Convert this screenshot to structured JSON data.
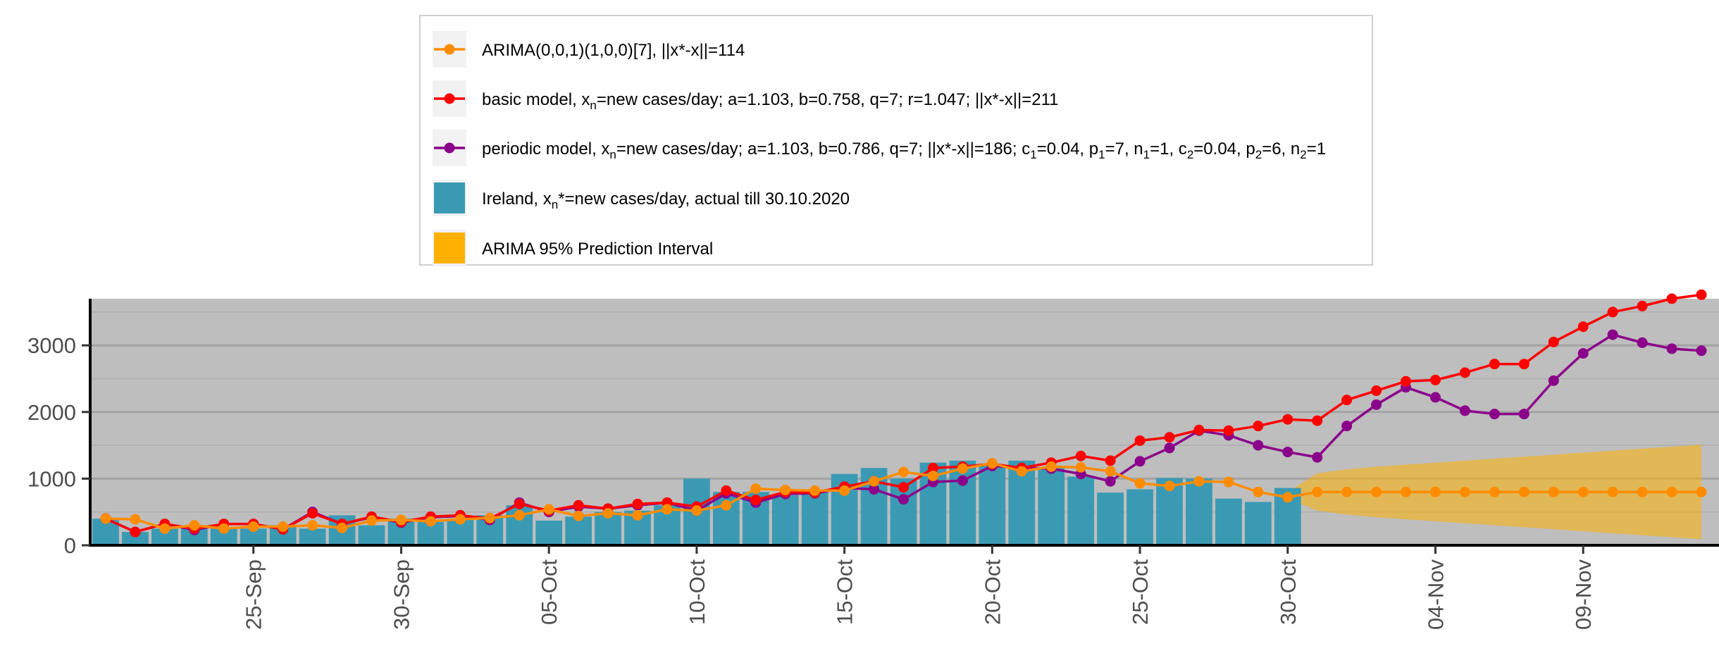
{
  "chart_data": {
    "type": "bar",
    "x_type": "date",
    "xlim": [
      "2020-09-20",
      "2020-11-13"
    ],
    "ylim": [
      0,
      3700
    ],
    "y_ticks": [
      0,
      1000,
      2000,
      3000
    ],
    "y_tick_labels": [
      "0",
      "1000",
      "2000",
      "3000"
    ],
    "x_ticks": [
      "2020-09-25",
      "2020-09-30",
      "2020-10-05",
      "2020-10-10",
      "2020-10-15",
      "2020-10-20",
      "2020-10-25",
      "2020-10-30",
      "2020-11-04",
      "2020-11-09"
    ],
    "x_tick_labels": [
      "25-Sep",
      "30-Sep",
      "05-Oct",
      "10-Oct",
      "15-Oct",
      "20-Oct",
      "25-Oct",
      "30-Oct",
      "04-Nov",
      "09-Nov"
    ],
    "grid": true,
    "legend_position": "top",
    "legend": [
      {
        "key": "arima",
        "name": "ARIMA(0,0,1)(1,0,0)[7], ||x*-x||=114",
        "symbol": "line-point",
        "color": "#FF8C00"
      },
      {
        "key": "basic",
        "name_runs": [
          [
            "basic model,  x",
            ""
          ],
          [
            "n",
            "sub"
          ],
          [
            "=new cases/day; a=1.103, b=0.758, q=7;  r=1.047; ||x*-x||=211",
            ""
          ]
        ],
        "symbol": "line-point",
        "color": "#FF0000"
      },
      {
        "key": "periodic",
        "name_runs": [
          [
            "periodic model, x",
            ""
          ],
          [
            "n",
            "sub"
          ],
          [
            "=new cases/day; a=1.103, b=0.786, q=7; ||x*-x||=186; c",
            ""
          ],
          [
            "1",
            "sub"
          ],
          [
            "=0.04, p",
            ""
          ],
          [
            "1",
            "sub"
          ],
          [
            "=7, n",
            ""
          ],
          [
            "1",
            "sub"
          ],
          [
            "=1, c",
            ""
          ],
          [
            "2",
            "sub"
          ],
          [
            "=0.04, p",
            ""
          ],
          [
            "2",
            "sub"
          ],
          [
            "=6, n",
            ""
          ],
          [
            "2",
            "sub"
          ],
          [
            "=1",
            ""
          ]
        ],
        "symbol": "line-point",
        "color": "#8B008B"
      },
      {
        "key": "actual",
        "name_runs": [
          [
            "Ireland, x",
            ""
          ],
          [
            "n",
            "sub"
          ],
          [
            "*=new cases/day, actual till 30.10.2020",
            ""
          ]
        ],
        "symbol": "box",
        "color": "#3A9AB4"
      },
      {
        "key": "interval",
        "name": "ARIMA 95% Prediction Interval",
        "symbol": "box",
        "color": "#FFB000"
      }
    ],
    "bars": {
      "name": "Ireland, new cases/day, actual till 30.10.2020",
      "color": "#3A9AB4",
      "x": [
        "2020-09-20",
        "2020-09-21",
        "2020-09-22",
        "2020-09-23",
        "2020-09-24",
        "2020-09-25",
        "2020-09-26",
        "2020-09-27",
        "2020-09-28",
        "2020-09-29",
        "2020-09-30",
        "2020-10-01",
        "2020-10-02",
        "2020-10-03",
        "2020-10-04",
        "2020-10-05",
        "2020-10-06",
        "2020-10-07",
        "2020-10-08",
        "2020-10-09",
        "2020-10-10",
        "2020-10-11",
        "2020-10-12",
        "2020-10-13",
        "2020-10-14",
        "2020-10-15",
        "2020-10-16",
        "2020-10-17",
        "2020-10-18",
        "2020-10-19",
        "2020-10-20",
        "2020-10-21",
        "2020-10-22",
        "2020-10-23",
        "2020-10-24",
        "2020-10-25",
        "2020-10-26",
        "2020-10-27",
        "2020-10-28",
        "2020-10-29",
        "2020-10-30"
      ],
      "values": [
        400,
        200,
        250,
        250,
        250,
        250,
        300,
        250,
        450,
        300,
        400,
        350,
        400,
        450,
        600,
        370,
        430,
        500,
        520,
        600,
        1000,
        800,
        800,
        750,
        810,
        1070,
        1160,
        1000,
        1240,
        1270,
        1200,
        1270,
        1160,
        1030,
        790,
        840,
        1010,
        1000,
        700,
        650,
        860
      ]
    },
    "series": [
      {
        "name": "ARIMA(0,0,1)(1,0,0)[7], ||x*-x||=114",
        "color": "#FF8C00",
        "x": [
          "2020-09-20",
          "2020-09-21",
          "2020-09-22",
          "2020-09-23",
          "2020-09-24",
          "2020-09-25",
          "2020-09-26",
          "2020-09-27",
          "2020-09-28",
          "2020-09-29",
          "2020-09-30",
          "2020-10-01",
          "2020-10-02",
          "2020-10-03",
          "2020-10-04",
          "2020-10-05",
          "2020-10-06",
          "2020-10-07",
          "2020-10-08",
          "2020-10-09",
          "2020-10-10",
          "2020-10-11",
          "2020-10-12",
          "2020-10-13",
          "2020-10-14",
          "2020-10-15",
          "2020-10-16",
          "2020-10-17",
          "2020-10-18",
          "2020-10-19",
          "2020-10-20",
          "2020-10-21",
          "2020-10-22",
          "2020-10-23",
          "2020-10-24",
          "2020-10-25",
          "2020-10-26",
          "2020-10-27",
          "2020-10-28",
          "2020-10-29",
          "2020-10-30",
          "2020-10-31",
          "2020-11-01",
          "2020-11-02",
          "2020-11-03",
          "2020-11-04",
          "2020-11-05",
          "2020-11-06",
          "2020-11-07",
          "2020-11-08",
          "2020-11-09",
          "2020-11-10",
          "2020-11-11",
          "2020-11-12",
          "2020-11-13"
        ],
        "values": [
          400,
          390,
          250,
          300,
          250,
          280,
          280,
          300,
          260,
          370,
          380,
          360,
          390,
          410,
          450,
          540,
          440,
          480,
          450,
          540,
          520,
          600,
          850,
          830,
          820,
          820,
          960,
          1100,
          1040,
          1150,
          1230,
          1110,
          1180,
          1170,
          1110,
          930,
          890,
          960,
          950,
          800,
          720,
          800,
          800,
          800,
          800,
          800,
          800,
          800,
          800,
          800,
          800,
          800,
          800,
          800,
          800
        ]
      },
      {
        "name": "basic model, new cases/day; a=1.103, b=0.758, q=7; r=1.047; ||x*-x||=211",
        "color": "#FF0000",
        "x": [
          "2020-09-20",
          "2020-09-21",
          "2020-09-22",
          "2020-09-23",
          "2020-09-24",
          "2020-09-25",
          "2020-09-26",
          "2020-09-27",
          "2020-09-28",
          "2020-09-29",
          "2020-09-30",
          "2020-10-01",
          "2020-10-02",
          "2020-10-03",
          "2020-10-04",
          "2020-10-05",
          "2020-10-06",
          "2020-10-07",
          "2020-10-08",
          "2020-10-09",
          "2020-10-10",
          "2020-10-11",
          "2020-10-12",
          "2020-10-13",
          "2020-10-14",
          "2020-10-15",
          "2020-10-16",
          "2020-10-17",
          "2020-10-18",
          "2020-10-19",
          "2020-10-20",
          "2020-10-21",
          "2020-10-22",
          "2020-10-23",
          "2020-10-24",
          "2020-10-25",
          "2020-10-26",
          "2020-10-27",
          "2020-10-28",
          "2020-10-29",
          "2020-10-30",
          "2020-10-31",
          "2020-11-01",
          "2020-11-02",
          "2020-11-03",
          "2020-11-04",
          "2020-11-05",
          "2020-11-06",
          "2020-11-07",
          "2020-11-08",
          "2020-11-09",
          "2020-11-10",
          "2020-11-11",
          "2020-11-12",
          "2020-11-13"
        ],
        "values": [
          400,
          200,
          320,
          250,
          320,
          320,
          240,
          480,
          320,
          430,
          350,
          430,
          450,
          400,
          620,
          520,
          600,
          550,
          620,
          640,
          580,
          820,
          680,
          800,
          790,
          880,
          960,
          870,
          1160,
          1180,
          1220,
          1160,
          1240,
          1340,
          1270,
          1570,
          1620,
          1730,
          1720,
          1790,
          1890,
          1870,
          2180,
          2320,
          2460,
          2480,
          2590,
          2720,
          2720,
          3050,
          3280,
          3500,
          3590,
          3700,
          3760
        ]
      },
      {
        "name": "periodic model, new cases/day; a=1.103, b=0.786, q=7; ||x*-x||=186; c1=0.04, p1=7, n1=1, c2=0.04, p2=6, n2=1",
        "color": "#8B008B",
        "x": [
          "2020-09-20",
          "2020-09-21",
          "2020-09-22",
          "2020-09-23",
          "2020-09-24",
          "2020-09-25",
          "2020-09-26",
          "2020-09-27",
          "2020-09-28",
          "2020-09-29",
          "2020-09-30",
          "2020-10-01",
          "2020-10-02",
          "2020-10-03",
          "2020-10-04",
          "2020-10-05",
          "2020-10-06",
          "2020-10-07",
          "2020-10-08",
          "2020-10-09",
          "2020-10-10",
          "2020-10-11",
          "2020-10-12",
          "2020-10-13",
          "2020-10-14",
          "2020-10-15",
          "2020-10-16",
          "2020-10-17",
          "2020-10-18",
          "2020-10-19",
          "2020-10-20",
          "2020-10-21",
          "2020-10-22",
          "2020-10-23",
          "2020-10-24",
          "2020-10-25",
          "2020-10-26",
          "2020-10-27",
          "2020-10-28",
          "2020-10-29",
          "2020-10-30",
          "2020-10-31",
          "2020-11-01",
          "2020-11-02",
          "2020-11-03",
          "2020-11-04",
          "2020-11-05",
          "2020-11-06",
          "2020-11-07",
          "2020-11-08",
          "2020-11-09",
          "2020-11-10",
          "2020-11-11",
          "2020-11-12",
          "2020-11-13"
        ],
        "values": [
          400,
          200,
          320,
          230,
          320,
          320,
          240,
          500,
          320,
          420,
          340,
          420,
          440,
          380,
          640,
          500,
          580,
          550,
          600,
          640,
          520,
          780,
          640,
          770,
          780,
          860,
          840,
          690,
          950,
          970,
          1190,
          1160,
          1150,
          1070,
          960,
          1260,
          1460,
          1720,
          1650,
          1500,
          1400,
          1320,
          1790,
          2110,
          2370,
          2220,
          2020,
          1970,
          1970,
          2470,
          2880,
          3160,
          3040,
          2950,
          2920
        ]
      }
    ],
    "band": {
      "name": "ARIMA 95% Prediction Interval",
      "color": "#FFB000",
      "x": [
        "2020-10-30",
        "2020-10-31",
        "2020-11-01",
        "2020-11-02",
        "2020-11-03",
        "2020-11-04",
        "2020-11-05",
        "2020-11-06",
        "2020-11-07",
        "2020-11-08",
        "2020-11-09",
        "2020-11-10",
        "2020-11-11",
        "2020-11-12",
        "2020-11-13"
      ],
      "upper": [
        800,
        1080,
        1140,
        1180,
        1210,
        1240,
        1270,
        1300,
        1330,
        1360,
        1390,
        1420,
        1450,
        1480,
        1510
      ],
      "lower": [
        700,
        520,
        460,
        420,
        390,
        360,
        330,
        300,
        270,
        240,
        210,
        180,
        150,
        120,
        90
      ]
    }
  }
}
